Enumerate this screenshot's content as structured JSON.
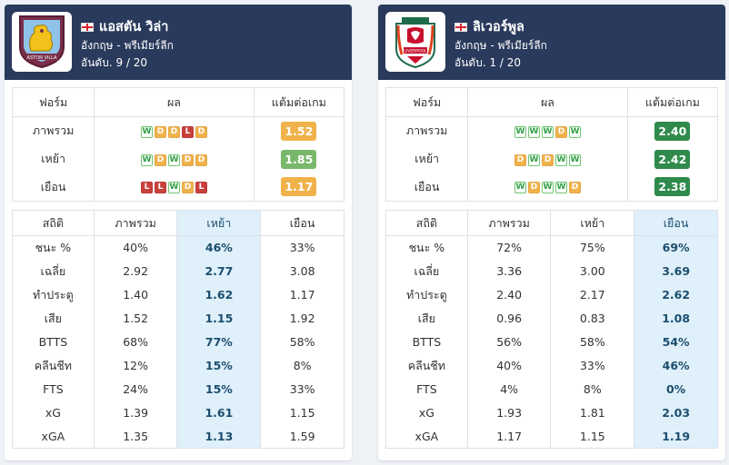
{
  "teams": [
    {
      "name": "แอสตัน วิล่า",
      "league": "อังกฤษ - พรีเมียร์ลีก",
      "rank": "อันดับ. 9 / 20",
      "logo_text": "ASTON VILLA",
      "form": {
        "headers": [
          "ฟอร์ม",
          "ผล",
          "แต้มต่อเกม"
        ],
        "rows": [
          {
            "label": "ภาพรวม",
            "results": [
              "W",
              "D",
              "D",
              "L",
              "D"
            ],
            "ppg": "1.52",
            "ppg_color": "#f0b24a"
          },
          {
            "label": "เหย้า",
            "results": [
              "W",
              "D",
              "W",
              "D",
              "D"
            ],
            "ppg": "1.85",
            "ppg_color": "#79b86a"
          },
          {
            "label": "เยือน",
            "results": [
              "L",
              "L",
              "W",
              "D",
              "L"
            ],
            "ppg": "1.17",
            "ppg_color": "#f0b24a"
          }
        ]
      },
      "stats": {
        "headers": [
          "สถิติ",
          "ภาพรวม",
          "เหย้า",
          "เยือน"
        ],
        "highlight_col": 2,
        "rows": [
          [
            "ชนะ %",
            "40%",
            "46%",
            "33%"
          ],
          [
            "เฉลี่ย",
            "2.92",
            "2.77",
            "3.08"
          ],
          [
            "ทำประตู",
            "1.40",
            "1.62",
            "1.17"
          ],
          [
            "เสีย",
            "1.52",
            "1.15",
            "1.92"
          ],
          [
            "BTTS",
            "68%",
            "77%",
            "58%"
          ],
          [
            "คลีนชีท",
            "12%",
            "15%",
            "8%"
          ],
          [
            "FTS",
            "24%",
            "15%",
            "33%"
          ],
          [
            "xG",
            "1.39",
            "1.61",
            "1.15"
          ],
          [
            "xGA",
            "1.35",
            "1.13",
            "1.59"
          ]
        ]
      }
    },
    {
      "name": "ลิเวอร์พูล",
      "league": "อังกฤษ - พรีเมียร์ลีก",
      "rank": "อันดับ. 1 / 20",
      "logo_text": "LIVERPOOL",
      "form": {
        "headers": [
          "ฟอร์ม",
          "ผล",
          "แต้มต่อเกม"
        ],
        "rows": [
          {
            "label": "ภาพรวม",
            "results": [
              "W",
              "W",
              "W",
              "D",
              "W"
            ],
            "ppg": "2.40",
            "ppg_color": "#2f8a4c"
          },
          {
            "label": "เหย้า",
            "results": [
              "D",
              "W",
              "D",
              "W",
              "W"
            ],
            "ppg": "2.42",
            "ppg_color": "#2f8a4c"
          },
          {
            "label": "เยือน",
            "results": [
              "W",
              "D",
              "W",
              "W",
              "D"
            ],
            "ppg": "2.38",
            "ppg_color": "#2f8a4c"
          }
        ]
      },
      "stats": {
        "headers": [
          "สถิติ",
          "ภาพรวม",
          "เหย้า",
          "เยือน"
        ],
        "highlight_col": 3,
        "rows": [
          [
            "ชนะ %",
            "72%",
            "75%",
            "69%"
          ],
          [
            "เฉลี่ย",
            "3.36",
            "3.00",
            "3.69"
          ],
          [
            "ทำประตู",
            "2.40",
            "2.17",
            "2.62"
          ],
          [
            "เสีย",
            "0.96",
            "0.83",
            "1.08"
          ],
          [
            "BTTS",
            "56%",
            "58%",
            "54%"
          ],
          [
            "คลีนชีท",
            "40%",
            "33%",
            "46%"
          ],
          [
            "FTS",
            "4%",
            "8%",
            "0%"
          ],
          [
            "xG",
            "1.93",
            "1.81",
            "2.03"
          ],
          [
            "xGA",
            "1.17",
            "1.15",
            "1.19"
          ]
        ]
      }
    }
  ]
}
